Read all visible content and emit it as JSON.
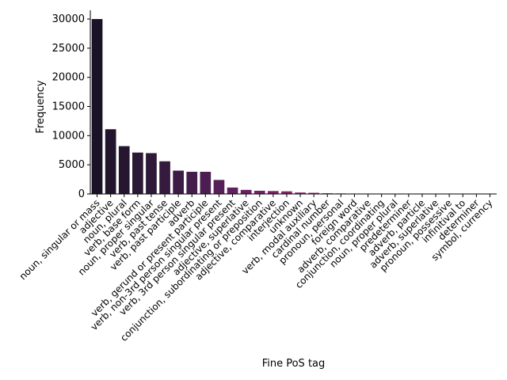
{
  "chart_data": {
    "type": "bar",
    "title": "",
    "xlabel": "Fine PoS tag",
    "ylabel": "Frequency",
    "ylim": [
      0,
      31500
    ],
    "yticks": [
      0,
      5000,
      10000,
      15000,
      20000,
      25000,
      30000
    ],
    "grid": false,
    "categories": [
      "noun, singular or mass",
      "adjective",
      "noun, plural",
      "verb, base form",
      "noun, proper singular",
      "verb, past tense",
      "verb, past participle",
      "adverb",
      "verb, gerund or present participle",
      "verb, non-3rd person singular present",
      "verb, 3rd person singular present",
      "adjective, superlative",
      "conjunction, subordinating or preposition",
      "adjective, comparative",
      "interjection",
      "unknown",
      "verb, modal auxiliary",
      "cardinal number",
      "pronoun, personal",
      "foreign word",
      "adverb, comparative",
      "conjunction, coordinating",
      "noun, proper plural",
      "predeterminer",
      "adverb, particle",
      "adverb, superlative",
      "pronoun, possessive",
      "infinitival to",
      "determiner",
      "symbol, currency"
    ],
    "values": [
      30000,
      11100,
      8200,
      7100,
      7000,
      5600,
      4000,
      3800,
      3800,
      2400,
      1100,
      700,
      550,
      500,
      450,
      250,
      200,
      120,
      90,
      70,
      60,
      50,
      40,
      30,
      25,
      20,
      15,
      10,
      5,
      3
    ],
    "colors": [
      "#1a1226",
      "#22142c",
      "#261630",
      "#2a1834",
      "#2e1a38",
      "#341b3d",
      "#3c1c44",
      "#441d4b",
      "#4c1e52",
      "#561f58",
      "#60205e",
      "#6b2062",
      "#742165",
      "#7d2166",
      "#872267",
      "#902467",
      "#992666",
      "#a22965",
      "#aa2d63",
      "#b13261",
      "#b8385e",
      "#be3f5b",
      "#c44858",
      "#c95255",
      "#ce5c52",
      "#d2674f",
      "#d6724d",
      "#d97e4c",
      "#dc8a4c",
      "#de964e"
    ]
  }
}
